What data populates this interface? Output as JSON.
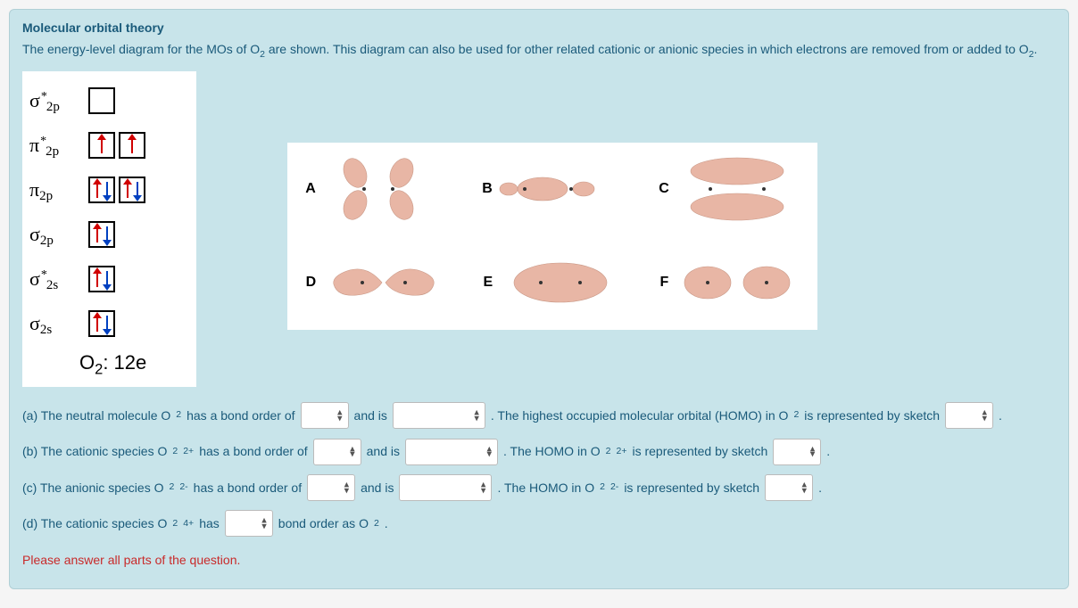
{
  "title": "Molecular orbital theory",
  "intro_a": "The energy-level diagram for the MOs of O",
  "intro_b": " are shown.  This diagram can also be used for other related cationic or anionic species in which electrons are removed from or added to O",
  "intro_end": ".",
  "mo": {
    "levels": [
      {
        "symbol": "σ",
        "star": true,
        "sub": "2p",
        "boxes": [
          []
        ]
      },
      {
        "symbol": "π",
        "star": true,
        "sub": "2p",
        "boxes": [
          [
            "up"
          ],
          [
            "up"
          ]
        ]
      },
      {
        "symbol": "π",
        "star": false,
        "sub": "2p",
        "boxes": [
          [
            "up",
            "down"
          ],
          [
            "up",
            "down"
          ]
        ]
      },
      {
        "symbol": "σ",
        "star": false,
        "sub": "2p",
        "boxes": [
          [
            "up",
            "down"
          ]
        ]
      },
      {
        "symbol": "σ",
        "star": true,
        "sub": "2s",
        "boxes": [
          [
            "up",
            "down"
          ]
        ]
      },
      {
        "symbol": "σ",
        "star": false,
        "sub": "2s",
        "boxes": [
          [
            "up",
            "down"
          ]
        ]
      }
    ],
    "footer_a": "O",
    "footer_b": ": 12e"
  },
  "orbital_letters": {
    "A": "A",
    "B": "B",
    "C": "C",
    "D": "D",
    "E": "E",
    "F": "F"
  },
  "q": {
    "a1": "(a) The neutral molecule O",
    "a2": " has a bond order of",
    "and_is": "and is",
    "a3": ".  The highest occupied molecular orbital (HOMO) in O",
    "a4": " is represented by sketch",
    "b1": "(b) The cationic species O",
    "b2": " has a bond order of",
    "b3": ".  The HOMO in O",
    "b4": " is represented by sketch",
    "c1": "(c) The anionic species O",
    "c2": " has a bond order of",
    "c3": ".  The HOMO in O",
    "c4": " is represented by sketch",
    "d1": "(d) The cationic species O",
    "d2": " has",
    "d3": "bond order as O",
    "period": "."
  },
  "sup": {
    "plus2": "2+",
    "minus2": "2-",
    "plus4": "4+"
  },
  "error": "Please answer all parts of the question.",
  "colors": {
    "panel_bg": "#c8e4ea",
    "text": "#1a5a7a",
    "lobe_fill": "#e8b6a5",
    "lobe_stroke": "#c99886",
    "arrow_up": "#d00000",
    "arrow_down": "#0040c0",
    "error": "#c92a2a"
  }
}
